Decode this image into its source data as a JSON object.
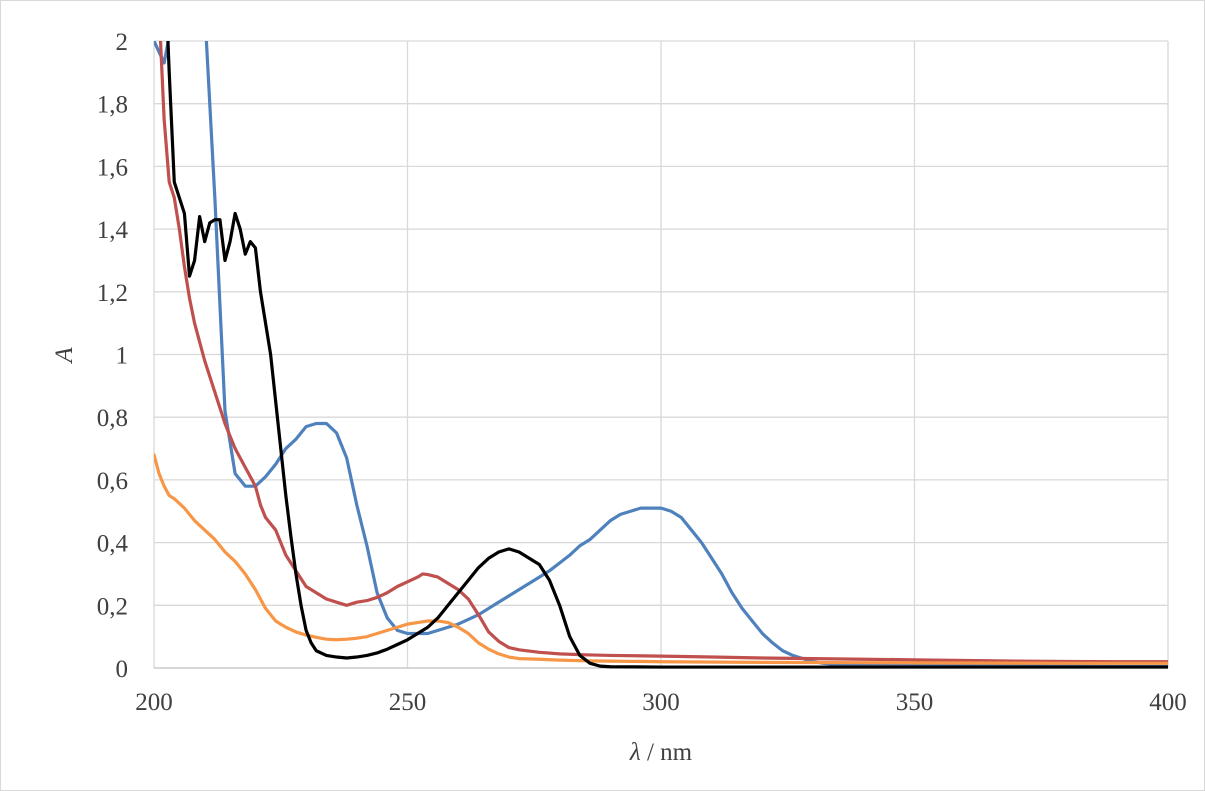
{
  "chart_data": {
    "type": "line",
    "title": "",
    "xlabel_symbol": "λ",
    "xlabel_unit": " / nm",
    "ylabel": "A",
    "xlim": [
      200,
      400
    ],
    "ylim": [
      0,
      2
    ],
    "x_ticks": [
      200,
      250,
      300,
      350,
      400
    ],
    "y_ticks": [
      0,
      0.2,
      0.4,
      0.6,
      0.8,
      1,
      1.2,
      1.4,
      1.6,
      1.8,
      2
    ],
    "x_tick_labels": [
      "200",
      "250",
      "300",
      "350",
      "400"
    ],
    "y_tick_labels": [
      "0",
      "0,2",
      "0,4",
      "0,6",
      "0,8",
      "1",
      "1,2",
      "1,4",
      "1,6",
      "1,8",
      "2"
    ],
    "grid": true,
    "legend": "none",
    "series": [
      {
        "color": "#4f81bd",
        "points": [
          [
            200,
            2.0
          ],
          [
            202,
            1.93
          ],
          [
            204,
            2.1
          ],
          [
            206,
            2.4
          ],
          [
            208,
            2.5
          ],
          [
            210,
            2.1
          ],
          [
            212,
            1.5
          ],
          [
            214,
            0.82
          ],
          [
            216,
            0.62
          ],
          [
            218,
            0.58
          ],
          [
            220,
            0.58
          ],
          [
            222,
            0.61
          ],
          [
            224,
            0.65
          ],
          [
            226,
            0.7
          ],
          [
            228,
            0.73
          ],
          [
            230,
            0.77
          ],
          [
            232,
            0.78
          ],
          [
            234,
            0.78
          ],
          [
            236,
            0.75
          ],
          [
            238,
            0.67
          ],
          [
            240,
            0.52
          ],
          [
            242,
            0.39
          ],
          [
            244,
            0.24
          ],
          [
            246,
            0.16
          ],
          [
            248,
            0.12
          ],
          [
            250,
            0.11
          ],
          [
            252,
            0.11
          ],
          [
            254,
            0.11
          ],
          [
            256,
            0.12
          ],
          [
            258,
            0.13
          ],
          [
            260,
            0.14
          ],
          [
            262,
            0.155
          ],
          [
            264,
            0.17
          ],
          [
            266,
            0.19
          ],
          [
            268,
            0.21
          ],
          [
            270,
            0.23
          ],
          [
            272,
            0.25
          ],
          [
            274,
            0.27
          ],
          [
            276,
            0.29
          ],
          [
            278,
            0.31
          ],
          [
            280,
            0.335
          ],
          [
            282,
            0.36
          ],
          [
            284,
            0.39
          ],
          [
            286,
            0.41
          ],
          [
            288,
            0.44
          ],
          [
            290,
            0.47
          ],
          [
            292,
            0.49
          ],
          [
            294,
            0.5
          ],
          [
            296,
            0.51
          ],
          [
            298,
            0.51
          ],
          [
            300,
            0.51
          ],
          [
            302,
            0.5
          ],
          [
            304,
            0.48
          ],
          [
            306,
            0.44
          ],
          [
            308,
            0.4
          ],
          [
            310,
            0.35
          ],
          [
            312,
            0.3
          ],
          [
            314,
            0.24
          ],
          [
            316,
            0.19
          ],
          [
            318,
            0.15
          ],
          [
            320,
            0.11
          ],
          [
            322,
            0.08
          ],
          [
            324,
            0.055
          ],
          [
            326,
            0.04
          ],
          [
            328,
            0.03
          ],
          [
            330,
            0.02
          ],
          [
            332,
            0.015
          ],
          [
            336,
            0.01
          ],
          [
            340,
            0.01
          ],
          [
            350,
            0.008
          ],
          [
            360,
            0.007
          ],
          [
            370,
            0.006
          ],
          [
            380,
            0.006
          ],
          [
            390,
            0.005
          ],
          [
            400,
            0.005
          ]
        ]
      },
      {
        "color": "#c0504d",
        "points": [
          [
            200,
            2.4
          ],
          [
            201,
            2.1
          ],
          [
            202,
            1.75
          ],
          [
            203,
            1.55
          ],
          [
            204,
            1.5
          ],
          [
            205,
            1.4
          ],
          [
            206,
            1.28
          ],
          [
            207,
            1.18
          ],
          [
            208,
            1.1
          ],
          [
            210,
            0.98
          ],
          [
            212,
            0.88
          ],
          [
            214,
            0.78
          ],
          [
            216,
            0.7
          ],
          [
            218,
            0.64
          ],
          [
            220,
            0.58
          ],
          [
            221,
            0.52
          ],
          [
            222,
            0.48
          ],
          [
            224,
            0.44
          ],
          [
            226,
            0.36
          ],
          [
            228,
            0.31
          ],
          [
            230,
            0.26
          ],
          [
            232,
            0.24
          ],
          [
            234,
            0.22
          ],
          [
            236,
            0.21
          ],
          [
            238,
            0.2
          ],
          [
            240,
            0.21
          ],
          [
            242,
            0.215
          ],
          [
            244,
            0.225
          ],
          [
            246,
            0.24
          ],
          [
            248,
            0.26
          ],
          [
            250,
            0.275
          ],
          [
            252,
            0.29
          ],
          [
            253,
            0.3
          ],
          [
            254,
            0.298
          ],
          [
            256,
            0.29
          ],
          [
            258,
            0.27
          ],
          [
            260,
            0.25
          ],
          [
            262,
            0.22
          ],
          [
            264,
            0.17
          ],
          [
            266,
            0.115
          ],
          [
            268,
            0.085
          ],
          [
            270,
            0.065
          ],
          [
            272,
            0.058
          ],
          [
            276,
            0.05
          ],
          [
            280,
            0.045
          ],
          [
            285,
            0.042
          ],
          [
            290,
            0.04
          ],
          [
            300,
            0.038
          ],
          [
            310,
            0.035
          ],
          [
            320,
            0.032
          ],
          [
            330,
            0.03
          ],
          [
            340,
            0.028
          ],
          [
            350,
            0.026
          ],
          [
            360,
            0.024
          ],
          [
            370,
            0.022
          ],
          [
            380,
            0.021
          ],
          [
            390,
            0.02
          ],
          [
            400,
            0.02
          ]
        ]
      },
      {
        "color": "#f79646",
        "points": [
          [
            200,
            0.68
          ],
          [
            201,
            0.62
          ],
          [
            202,
            0.58
          ],
          [
            203,
            0.55
          ],
          [
            204,
            0.54
          ],
          [
            206,
            0.51
          ],
          [
            208,
            0.47
          ],
          [
            210,
            0.44
          ],
          [
            212,
            0.41
          ],
          [
            214,
            0.37
          ],
          [
            216,
            0.34
          ],
          [
            218,
            0.3
          ],
          [
            220,
            0.25
          ],
          [
            222,
            0.19
          ],
          [
            224,
            0.15
          ],
          [
            226,
            0.13
          ],
          [
            228,
            0.115
          ],
          [
            230,
            0.105
          ],
          [
            232,
            0.098
          ],
          [
            234,
            0.092
          ],
          [
            236,
            0.09
          ],
          [
            238,
            0.092
          ],
          [
            240,
            0.095
          ],
          [
            242,
            0.1
          ],
          [
            244,
            0.11
          ],
          [
            246,
            0.12
          ],
          [
            248,
            0.13
          ],
          [
            250,
            0.14
          ],
          [
            252,
            0.145
          ],
          [
            254,
            0.15
          ],
          [
            256,
            0.15
          ],
          [
            258,
            0.145
          ],
          [
            260,
            0.13
          ],
          [
            262,
            0.11
          ],
          [
            264,
            0.08
          ],
          [
            266,
            0.06
          ],
          [
            268,
            0.045
          ],
          [
            270,
            0.035
          ],
          [
            272,
            0.03
          ],
          [
            276,
            0.028
          ],
          [
            280,
            0.025
          ],
          [
            285,
            0.023
          ],
          [
            290,
            0.022
          ],
          [
            300,
            0.02
          ],
          [
            320,
            0.018
          ],
          [
            340,
            0.017
          ],
          [
            360,
            0.016
          ],
          [
            380,
            0.015
          ],
          [
            400,
            0.015
          ]
        ]
      },
      {
        "color": "#000000",
        "points": [
          [
            202,
            2.3
          ],
          [
            203,
            1.9
          ],
          [
            204,
            1.55
          ],
          [
            205,
            1.5
          ],
          [
            206,
            1.45
          ],
          [
            207,
            1.25
          ],
          [
            208,
            1.3
          ],
          [
            209,
            1.44
          ],
          [
            210,
            1.36
          ],
          [
            211,
            1.42
          ],
          [
            212,
            1.43
          ],
          [
            213,
            1.43
          ],
          [
            214,
            1.3
          ],
          [
            215,
            1.36
          ],
          [
            216,
            1.45
          ],
          [
            217,
            1.4
          ],
          [
            218,
            1.32
          ],
          [
            219,
            1.36
          ],
          [
            220,
            1.34
          ],
          [
            221,
            1.2
          ],
          [
            222,
            1.1
          ],
          [
            223,
            1.0
          ],
          [
            224,
            0.85
          ],
          [
            225,
            0.7
          ],
          [
            226,
            0.55
          ],
          [
            227,
            0.42
          ],
          [
            228,
            0.3
          ],
          [
            229,
            0.2
          ],
          [
            230,
            0.12
          ],
          [
            231,
            0.08
          ],
          [
            232,
            0.055
          ],
          [
            234,
            0.04
          ],
          [
            236,
            0.035
          ],
          [
            238,
            0.032
          ],
          [
            240,
            0.035
          ],
          [
            242,
            0.04
          ],
          [
            244,
            0.048
          ],
          [
            246,
            0.06
          ],
          [
            248,
            0.075
          ],
          [
            250,
            0.09
          ],
          [
            252,
            0.11
          ],
          [
            254,
            0.13
          ],
          [
            256,
            0.16
          ],
          [
            258,
            0.2
          ],
          [
            260,
            0.24
          ],
          [
            262,
            0.28
          ],
          [
            264,
            0.32
          ],
          [
            266,
            0.35
          ],
          [
            268,
            0.37
          ],
          [
            270,
            0.38
          ],
          [
            272,
            0.37
          ],
          [
            274,
            0.35
          ],
          [
            276,
            0.33
          ],
          [
            278,
            0.28
          ],
          [
            280,
            0.2
          ],
          [
            282,
            0.1
          ],
          [
            284,
            0.04
          ],
          [
            286,
            0.015
          ],
          [
            288,
            0.006
          ],
          [
            290,
            0.004
          ],
          [
            300,
            0.003
          ],
          [
            320,
            0.003
          ],
          [
            340,
            0.003
          ],
          [
            360,
            0.003
          ],
          [
            380,
            0.003
          ],
          [
            400,
            0.003
          ]
        ]
      }
    ]
  }
}
